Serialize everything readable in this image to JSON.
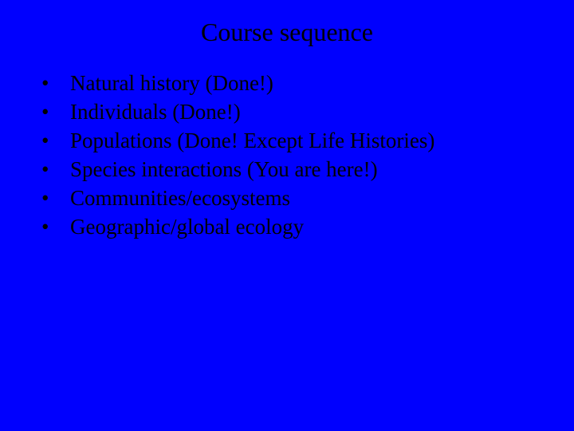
{
  "slide": {
    "background_color": "#0000fe",
    "title_color": "#000000",
    "text_color": "#000000",
    "font_family": "Times New Roman",
    "title_fontsize": 32,
    "body_fontsize": 27,
    "title": "Course sequence",
    "bullets": [
      "Natural history (Done!)",
      "Individuals (Done!)",
      "Populations (Done! Except Life Histories)",
      "Species interactions (You are here!)",
      "Communities/ecosystems",
      "Geographic/global ecology"
    ],
    "bullet_glyph": "•"
  }
}
